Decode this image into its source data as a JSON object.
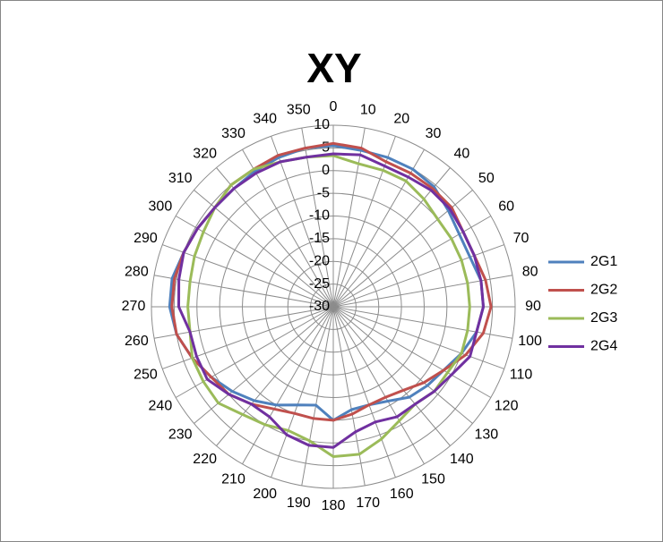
{
  "chart_data": {
    "type": "radar",
    "title": "XY",
    "categories": [
      "0",
      "10",
      "20",
      "30",
      "40",
      "50",
      "60",
      "70",
      "80",
      "90",
      "100",
      "110",
      "120",
      "130",
      "140",
      "150",
      "160",
      "170",
      "180",
      "190",
      "200",
      "210",
      "220",
      "230",
      "240",
      "250",
      "260",
      "270",
      "280",
      "290",
      "300",
      "310",
      "320",
      "330",
      "340",
      "350"
    ],
    "ylim": [
      -30,
      10
    ],
    "yticks": [
      -30,
      -25,
      -20,
      -15,
      -10,
      -5,
      0,
      5,
      10
    ],
    "grid": true,
    "legend": "right",
    "series": [
      {
        "name": "2G1",
        "color": "#4f81bd",
        "values": [
          5.5,
          5,
          5,
          5,
          4.5,
          3,
          2,
          2,
          3,
          3,
          2,
          0,
          -2,
          -3,
          -4,
          -6,
          -7,
          -7,
          -5,
          -8,
          -7,
          -5,
          -3,
          -1,
          1,
          3,
          5,
          6,
          6,
          5,
          4.5,
          4,
          4,
          4.5,
          5,
          5.5
        ]
      },
      {
        "name": "2G2",
        "color": "#c0504d",
        "values": [
          6,
          5.5,
          4,
          4,
          4,
          4,
          3,
          3,
          4,
          4.7,
          3.5,
          1,
          -2,
          -4,
          -6,
          -7,
          -7,
          -6,
          -5,
          -5,
          -5,
          -4,
          -2,
          0,
          1,
          3,
          5,
          5.5,
          5.5,
          5,
          4.5,
          4,
          5,
          5,
          5.5,
          5.5
        ]
      },
      {
        "name": "2G3",
        "color": "#9bbb59",
        "values": [
          3.3,
          2,
          2,
          2,
          1,
          0,
          0,
          0,
          0,
          0,
          0,
          0,
          -1,
          -1,
          -2,
          -1,
          1,
          3,
          3,
          0,
          -1,
          0,
          1,
          3,
          3,
          3,
          2,
          2,
          2,
          2.5,
          3,
          4,
          5,
          5,
          4,
          3.5
        ]
      },
      {
        "name": "2G4",
        "color": "#7030a0",
        "values": [
          3.7,
          4,
          3,
          3,
          3.5,
          3.5,
          3,
          3,
          3,
          3,
          2,
          2,
          0,
          -1,
          -2,
          -2,
          -3,
          -2,
          1,
          1,
          0,
          -2,
          -2,
          0,
          2,
          2,
          2,
          4,
          4.5,
          5,
          4.5,
          4,
          4,
          4,
          4,
          3.5
        ]
      }
    ]
  }
}
